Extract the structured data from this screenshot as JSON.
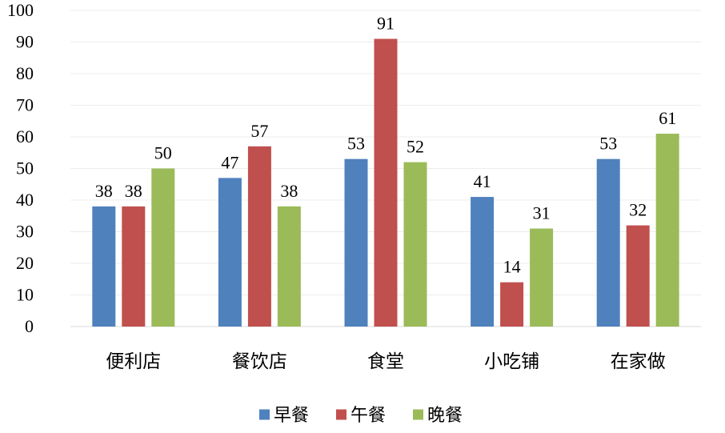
{
  "chart_data": {
    "type": "bar",
    "title": "",
    "xlabel": "",
    "ylabel": "",
    "ylim": [
      0,
      100
    ],
    "yticks": [
      0,
      10,
      20,
      30,
      40,
      50,
      60,
      70,
      80,
      90,
      100
    ],
    "grid": true,
    "legend_position": "bottom",
    "categories": [
      "便利店",
      "餐饮店",
      "食堂",
      "小吃铺",
      "在家做"
    ],
    "series": [
      {
        "name": "早餐",
        "color": "#4F81BD",
        "values": [
          38,
          47,
          53,
          41,
          53
        ]
      },
      {
        "name": "午餐",
        "color": "#C0504D",
        "values": [
          38,
          57,
          91,
          14,
          32
        ]
      },
      {
        "name": "晚餐",
        "color": "#9BBB59",
        "values": [
          50,
          38,
          52,
          31,
          61
        ]
      }
    ]
  }
}
